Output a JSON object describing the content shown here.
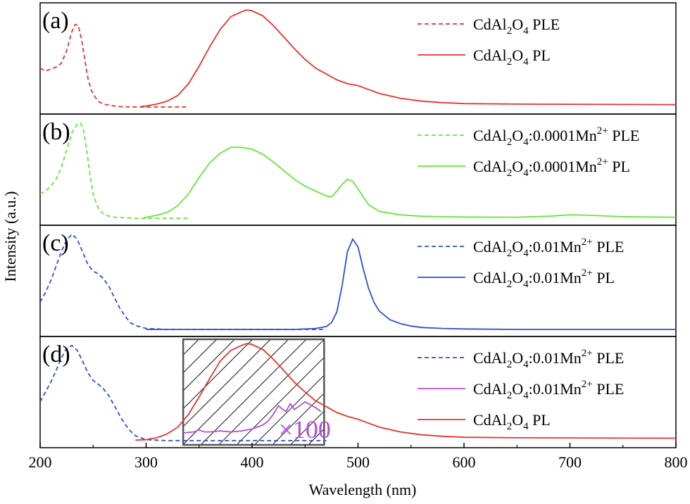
{
  "chart_data": {
    "type": "line",
    "xlabel": "Wavelength (nm)",
    "ylabel": "Intensity (a.u.)",
    "xlim": [
      200,
      800
    ],
    "xticks": [
      "200",
      "300",
      "400",
      "500",
      "600",
      "700",
      "800"
    ],
    "panels": [
      {
        "tag": "(a)",
        "series": [
          {
            "name": "CdAl2O4 PLE",
            "label_parts": [
              "CdAl",
              "2",
              "O",
              "4",
              " PLE"
            ],
            "style": "dashed",
            "color": "#e8322b",
            "x": [
              200,
              205,
              210,
              215,
              220,
              225,
              230,
              233,
              236,
              239,
              242,
              245,
              248,
              252,
              256,
              260,
              265,
              270,
              275,
              280,
              290,
              300,
              320,
              340
            ],
            "y": [
              0.4,
              0.37,
              0.39,
              0.41,
              0.45,
              0.58,
              0.78,
              0.85,
              0.84,
              0.7,
              0.5,
              0.3,
              0.18,
              0.1,
              0.05,
              0.03,
              0.02,
              0.01,
              0.005,
              0.002,
              0.0,
              0.0,
              0.0,
              0.0
            ]
          },
          {
            "name": "CdAl2O4 PL",
            "label_parts": [
              "CdAl",
              "2",
              "O",
              "4",
              " PL"
            ],
            "style": "solid",
            "color": "#e8322b",
            "x": [
              295,
              300,
              310,
              320,
              330,
              340,
              350,
              360,
              370,
              380,
              390,
              395,
              400,
              410,
              420,
              430,
              440,
              450,
              460,
              470,
              480,
              490,
              500,
              510,
              520,
              540,
              560,
              580,
              600,
              650,
              700,
              750,
              800
            ],
            "y": [
              0.005,
              0.01,
              0.03,
              0.06,
              0.12,
              0.24,
              0.42,
              0.62,
              0.8,
              0.93,
              0.98,
              1.0,
              0.99,
              0.94,
              0.84,
              0.72,
              0.6,
              0.49,
              0.4,
              0.34,
              0.28,
              0.24,
              0.22,
              0.18,
              0.14,
              0.09,
              0.06,
              0.045,
              0.035,
              0.03,
              0.028,
              0.026,
              0.025
            ]
          }
        ],
        "legend": [
          "CdAl2O4 PLE",
          "CdAl2O4 PL"
        ]
      },
      {
        "tag": "(b)",
        "series": [
          {
            "name": "CdAl2O4:0.0001Mn2+ PLE",
            "label_parts": [
              "CdAl",
              "2",
              "O",
              "4",
              ":0.0001Mn",
              "2+",
              " PLE"
            ],
            "style": "dashed",
            "color": "#66e63a",
            "x": [
              200,
              205,
              210,
              215,
              220,
              225,
              230,
              235,
              238,
              241,
              244,
              247,
              250,
              254,
              258,
              262,
              266,
              270,
              280,
              290,
              300,
              320,
              340
            ],
            "y": [
              0.25,
              0.28,
              0.33,
              0.4,
              0.52,
              0.7,
              0.88,
              0.97,
              0.98,
              0.9,
              0.7,
              0.45,
              0.25,
              0.12,
              0.06,
              0.03,
              0.02,
              0.01,
              0.005,
              0.0,
              0.0,
              0.0,
              0.0
            ]
          },
          {
            "name": "CdAl2O4:0.0001Mn2+ PL",
            "label_parts": [
              "CdAl",
              "2",
              "O",
              "4",
              ":0.0001Mn",
              "2+",
              " PL"
            ],
            "style": "solid",
            "color": "#66e63a",
            "x": [
              298,
              310,
              320,
              330,
              340,
              350,
              360,
              370,
              380,
              390,
              400,
              410,
              420,
              430,
              440,
              450,
              460,
              470,
              475,
              480,
              485,
              490,
              495,
              500,
              505,
              510,
              520,
              540,
              560,
              580,
              600,
              650,
              680,
              700,
              720,
              750,
              800
            ],
            "y": [
              0.005,
              0.03,
              0.06,
              0.13,
              0.25,
              0.42,
              0.57,
              0.67,
              0.73,
              0.73,
              0.71,
              0.66,
              0.58,
              0.49,
              0.4,
              0.33,
              0.28,
              0.23,
              0.22,
              0.28,
              0.35,
              0.4,
              0.38,
              0.3,
              0.22,
              0.14,
              0.07,
              0.035,
              0.02,
              0.015,
              0.012,
              0.01,
              0.02,
              0.035,
              0.03,
              0.015,
              0.01
            ]
          }
        ],
        "legend": [
          "CdAl2O4:0.0001Mn2+ PLE",
          "CdAl2O4:0.0001Mn2+ PL"
        ]
      },
      {
        "tag": "(c)",
        "series": [
          {
            "name": "CdAl2O4:0.01Mn2+ PLE",
            "label_parts": [
              "CdAl",
              "2",
              "O",
              "4",
              ":0.01Mn",
              "2+",
              " PLE"
            ],
            "style": "dashed",
            "color": "#2e4fd1",
            "x": [
              200,
              205,
              210,
              215,
              220,
              225,
              230,
              235,
              240,
              245,
              250,
              255,
              260,
              265,
              270,
              275,
              280,
              285,
              290,
              300,
              310,
              320,
              340,
              360,
              400,
              450,
              470
            ],
            "y": [
              0.28,
              0.38,
              0.5,
              0.65,
              0.8,
              0.92,
              0.98,
              0.93,
              0.8,
              0.67,
              0.6,
              0.57,
              0.52,
              0.44,
              0.33,
              0.22,
              0.14,
              0.07,
              0.04,
              0.01,
              0.005,
              0.0,
              0.0,
              0.0,
              0.0,
              0.0,
              0.0
            ]
          },
          {
            "name": "CdAl2O4:0.01Mn2+ PL",
            "label_parts": [
              "CdAl",
              "2",
              "O",
              "4",
              ":0.01Mn",
              "2+",
              " PL"
            ],
            "style": "solid",
            "color": "#2e4fd1",
            "x": [
              300,
              350,
              400,
              440,
              460,
              470,
              475,
              480,
              485,
              490,
              495,
              500,
              505,
              510,
              515,
              520,
              530,
              540,
              550,
              560,
              580,
              600,
              650,
              700,
              800
            ],
            "y": [
              0.0,
              0.0,
              0.0,
              0.0,
              0.01,
              0.03,
              0.07,
              0.18,
              0.45,
              0.8,
              0.93,
              0.85,
              0.62,
              0.42,
              0.28,
              0.19,
              0.1,
              0.06,
              0.035,
              0.02,
              0.01,
              0.005,
              0.0,
              0.0,
              0.0
            ]
          }
        ],
        "legend": [
          "CdAl2O4:0.01Mn2+ PLE",
          "CdAl2O4:0.01Mn2+ PL"
        ]
      },
      {
        "tag": "(d)",
        "series": [
          {
            "name": "CdAl2O4:0.01Mn2+ PLE",
            "label_parts": [
              "CdAl",
              "2",
              "O",
              "4",
              ":0.01Mn",
              "2+",
              " PLE"
            ],
            "style": "dashed",
            "color": "#2e4fd1",
            "x": [
              200,
              205,
              210,
              215,
              220,
              225,
              230,
              235,
              240,
              245,
              250,
              255,
              260,
              265,
              270,
              275,
              280,
              285,
              290,
              300,
              310,
              320,
              340,
              360,
              400,
              450,
              470
            ],
            "y": [
              0.4,
              0.5,
              0.6,
              0.72,
              0.85,
              0.95,
              0.98,
              0.93,
              0.82,
              0.7,
              0.62,
              0.58,
              0.53,
              0.46,
              0.36,
              0.26,
              0.17,
              0.1,
              0.05,
              0.01,
              0.005,
              0.0,
              0.0,
              0.0,
              0.0,
              0.0,
              0.0
            ]
          },
          {
            "name": "CdAl2O4:0.01Mn2+ PLE",
            "label_parts": [
              "CdAl",
              "2",
              "O",
              "4",
              ":0.01Mn",
              "2+",
              " PLE"
            ],
            "style": "solid",
            "color": "#b24fd8",
            "x": [
              335,
              345,
              350,
              355,
              360,
              370,
              380,
              390,
              400,
              410,
              415,
              420,
              425,
              428,
              432,
              436,
              440,
              445,
              450,
              455,
              460,
              465
            ],
            "y": [
              0.08,
              0.09,
              0.11,
              0.09,
              0.09,
              0.1,
              0.09,
              0.1,
              0.12,
              0.16,
              0.2,
              0.27,
              0.36,
              0.33,
              0.3,
              0.38,
              0.32,
              0.36,
              0.4,
              0.37,
              0.34,
              0.3
            ]
          },
          {
            "name": "CdAl2O4 PL",
            "label_parts": [
              "CdAl",
              "2",
              "O",
              "4",
              " PL"
            ],
            "style": "solid",
            "color": "#e8322b",
            "x": [
              290,
              300,
              310,
              320,
              330,
              340,
              350,
              360,
              370,
              380,
              390,
              395,
              400,
              410,
              420,
              430,
              440,
              450,
              460,
              470,
              480,
              490,
              500,
              510,
              520,
              540,
              560,
              580,
              600,
              650,
              700,
              750,
              800
            ],
            "y": [
              0.005,
              0.01,
              0.03,
              0.07,
              0.14,
              0.27,
              0.45,
              0.64,
              0.82,
              0.93,
              0.98,
              1.0,
              0.99,
              0.94,
              0.84,
              0.72,
              0.6,
              0.5,
              0.41,
              0.35,
              0.29,
              0.25,
              0.22,
              0.18,
              0.14,
              0.09,
              0.06,
              0.045,
              0.035,
              0.03,
              0.028,
              0.026,
              0.025
            ]
          }
        ],
        "legend": [
          "CdAl2O4:0.01Mn2+ PLE",
          "CdAl2O4:0.01Mn2+ PLE",
          "CdAl2O4 PL"
        ],
        "annotation": "×100",
        "highlight_x": [
          335,
          468
        ]
      }
    ]
  }
}
